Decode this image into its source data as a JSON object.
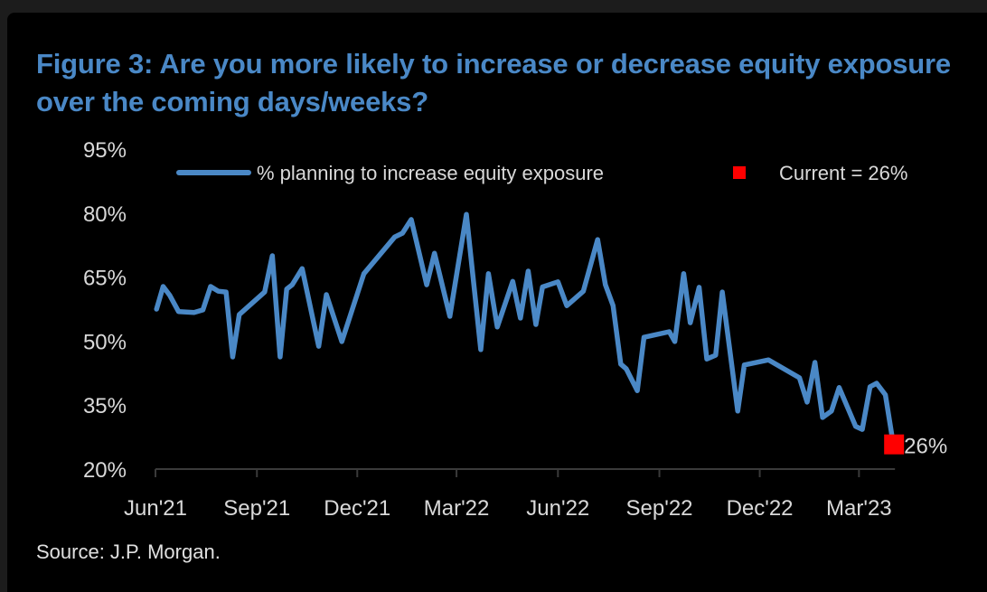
{
  "chart_data": {
    "type": "line",
    "title": "Figure 3: Are you more likely to increase or decrease equity exposure over the coming days/weeks?",
    "source": "Source: J.P. Morgan.",
    "ylim": [
      20,
      95
    ],
    "yticks": [
      20,
      35,
      50,
      65,
      80,
      95
    ],
    "ytick_labels": [
      "20%",
      "35%",
      "50%",
      "65%",
      "80%",
      "95%"
    ],
    "xticks": [
      "2021-06-01",
      "2021-09-01",
      "2021-12-01",
      "2022-03-01",
      "2022-06-01",
      "2022-09-01",
      "2022-12-01",
      "2023-03-01"
    ],
    "xtick_labels": [
      "Jun'21",
      "Sep'21",
      "Dec'21",
      "Mar'22",
      "Jun'22",
      "Sep'22",
      "Dec'22",
      "Mar'23"
    ],
    "grid": false,
    "legend_position": "top",
    "series": [
      {
        "name": "% planning to increase equity exposure",
        "color": "#4a88c6",
        "points": [
          [
            "2021-06-02",
            57.5
          ],
          [
            "2021-06-08",
            62.8
          ],
          [
            "2021-06-14",
            60.7
          ],
          [
            "2021-06-22",
            56.9
          ],
          [
            "2021-07-06",
            56.7
          ],
          [
            "2021-07-14",
            57.3
          ],
          [
            "2021-07-21",
            62.8
          ],
          [
            "2021-07-28",
            61.7
          ],
          [
            "2021-08-04",
            61.5
          ],
          [
            "2021-08-10",
            46.3
          ],
          [
            "2021-08-16",
            56.2
          ],
          [
            "2021-09-08",
            61.5
          ],
          [
            "2021-09-15",
            70.0
          ],
          [
            "2021-09-22",
            46.3
          ],
          [
            "2021-09-28",
            62.2
          ],
          [
            "2021-10-03",
            63.2
          ],
          [
            "2021-10-12",
            67.0
          ],
          [
            "2021-10-27",
            48.8
          ],
          [
            "2021-11-03",
            60.9
          ],
          [
            "2021-11-17",
            49.9
          ],
          [
            "2021-12-07",
            65.8
          ],
          [
            "2022-01-04",
            74.4
          ],
          [
            "2022-01-11",
            75.3
          ],
          [
            "2022-01-19",
            78.5
          ],
          [
            "2022-02-02",
            63.2
          ],
          [
            "2022-02-09",
            70.6
          ],
          [
            "2022-02-23",
            55.8
          ],
          [
            "2022-03-10",
            79.7
          ],
          [
            "2022-03-23",
            48.0
          ],
          [
            "2022-03-30",
            65.8
          ],
          [
            "2022-04-07",
            53.3
          ],
          [
            "2022-04-21",
            64.0
          ],
          [
            "2022-04-28",
            55.4
          ],
          [
            "2022-05-05",
            66.4
          ],
          [
            "2022-05-12",
            53.9
          ],
          [
            "2022-05-18",
            62.7
          ],
          [
            "2022-06-01",
            63.9
          ],
          [
            "2022-06-09",
            58.3
          ],
          [
            "2022-06-24",
            61.7
          ],
          [
            "2022-07-07",
            73.8
          ],
          [
            "2022-07-14",
            63.2
          ],
          [
            "2022-07-21",
            58.3
          ],
          [
            "2022-07-28",
            44.6
          ],
          [
            "2022-08-02",
            43.5
          ],
          [
            "2022-08-12",
            38.4
          ],
          [
            "2022-08-18",
            50.9
          ],
          [
            "2022-09-10",
            52.2
          ],
          [
            "2022-09-15",
            49.9
          ],
          [
            "2022-09-23",
            65.8
          ],
          [
            "2022-09-29",
            54.3
          ],
          [
            "2022-10-07",
            62.6
          ],
          [
            "2022-10-14",
            45.8
          ],
          [
            "2022-10-22",
            46.7
          ],
          [
            "2022-10-28",
            61.5
          ],
          [
            "2022-11-11",
            33.6
          ],
          [
            "2022-11-17",
            44.4
          ],
          [
            "2022-12-09",
            45.6
          ],
          [
            "2023-01-06",
            41.4
          ],
          [
            "2023-01-13",
            35.7
          ],
          [
            "2023-01-20",
            45.0
          ],
          [
            "2023-01-27",
            32.1
          ],
          [
            "2023-02-04",
            33.6
          ],
          [
            "2023-02-11",
            39.1
          ],
          [
            "2023-02-26",
            30.0
          ],
          [
            "2023-03-04",
            29.3
          ],
          [
            "2023-03-11",
            39.3
          ],
          [
            "2023-03-17",
            40.1
          ],
          [
            "2023-03-25",
            37.4
          ],
          [
            "2023-04-01",
            26.0
          ]
        ]
      }
    ],
    "current_marker": {
      "date": "2023-04-01",
      "value": 26,
      "color": "#ff0000",
      "legend_label": "Current = 26%",
      "data_label": "26%"
    },
    "colors": {
      "background": "#000000",
      "axis": "#3a3a3a",
      "text": "#d9d9d9",
      "title": "#4a88c6"
    }
  }
}
